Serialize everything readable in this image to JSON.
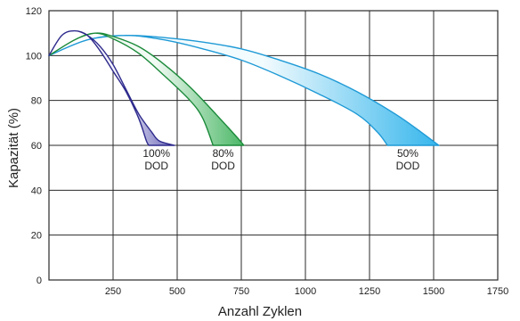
{
  "chart_data": {
    "type": "area",
    "xlabel": "Anzahl Zyklen",
    "ylabel": "Kapazität (%)",
    "xlim": [
      0,
      1750
    ],
    "ylim": [
      0,
      120
    ],
    "x_ticks": [
      "250",
      "500",
      "750",
      "1000",
      "1250",
      "1500",
      "1750"
    ],
    "y_ticks": [
      "0",
      "20",
      "40",
      "60",
      "80",
      "100",
      "120"
    ],
    "grid": true,
    "series": [
      {
        "label_line1": "100%",
        "label_line2": "DOD",
        "color": "#2e2a8c",
        "fill_light": "#f2f2fb",
        "fill_dark": "#6c68b8",
        "upper": [
          [
            0,
            100
          ],
          [
            50,
            109
          ],
          [
            100,
            111
          ],
          [
            150,
            109
          ],
          [
            200,
            104
          ],
          [
            250,
            96
          ],
          [
            300,
            85
          ],
          [
            350,
            74
          ],
          [
            400,
            66
          ],
          [
            430,
            62
          ],
          [
            490,
            60
          ]
        ],
        "lower": [
          [
            0,
            100
          ],
          [
            50,
            109
          ],
          [
            100,
            111
          ],
          [
            150,
            109
          ],
          [
            200,
            102
          ],
          [
            250,
            93
          ],
          [
            300,
            84
          ],
          [
            350,
            72
          ],
          [
            380,
            62
          ],
          [
            390,
            60
          ]
        ]
      },
      {
        "label_line1": "80%",
        "label_line2": "DOD",
        "color": "#1b8a3a",
        "fill_light": "#f1faf3",
        "fill_dark": "#4ab766",
        "upper": [
          [
            0,
            100
          ],
          [
            100,
            107
          ],
          [
            180,
            110
          ],
          [
            250,
            108.5
          ],
          [
            350,
            104
          ],
          [
            450,
            96
          ],
          [
            550,
            86
          ],
          [
            650,
            74
          ],
          [
            730,
            64
          ],
          [
            760,
            60
          ]
        ],
        "lower": [
          [
            0,
            100
          ],
          [
            100,
            107
          ],
          [
            180,
            110
          ],
          [
            250,
            107.5
          ],
          [
            350,
            101
          ],
          [
            450,
            91
          ],
          [
            550,
            80
          ],
          [
            600,
            72
          ],
          [
            640,
            60
          ]
        ]
      },
      {
        "label_line1": "50%",
        "label_line2": "DOD",
        "color": "#1f9ad6",
        "fill_light": "#f2fbfe",
        "fill_dark": "#36b6ec",
        "upper": [
          [
            0,
            100
          ],
          [
            150,
            107
          ],
          [
            300,
            109
          ],
          [
            450,
            108
          ],
          [
            600,
            106
          ],
          [
            750,
            103
          ],
          [
            900,
            98
          ],
          [
            1050,
            92
          ],
          [
            1200,
            84
          ],
          [
            1350,
            74
          ],
          [
            1450,
            66
          ],
          [
            1520,
            60
          ]
        ],
        "lower": [
          [
            0,
            100
          ],
          [
            150,
            107
          ],
          [
            300,
            109
          ],
          [
            450,
            107
          ],
          [
            600,
            103
          ],
          [
            750,
            98
          ],
          [
            900,
            91
          ],
          [
            1050,
            83
          ],
          [
            1200,
            74
          ],
          [
            1280,
            66
          ],
          [
            1320,
            60
          ]
        ]
      }
    ]
  }
}
